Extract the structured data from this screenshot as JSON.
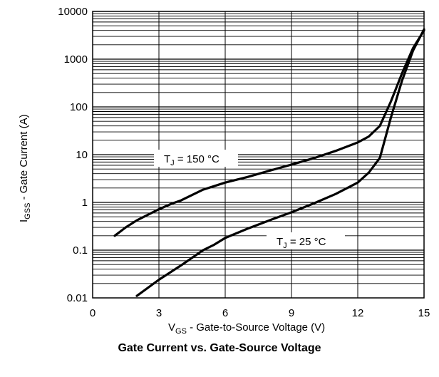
{
  "chart_data": {
    "type": "line",
    "title": "Gate Current vs. Gate-Source Voltage",
    "xlabel": {
      "main": "V",
      "sub": "GS",
      "rest": " - Gate-to-Source Voltage (V)"
    },
    "ylabel": {
      "main": "I",
      "sub": "GSS",
      "rest": " - Gate Current (A)"
    },
    "xlim": [
      0,
      15
    ],
    "ylim": [
      0.01,
      10000
    ],
    "yscale": "log",
    "grid": true,
    "x_ticks": [
      "0",
      "3",
      "6",
      "9",
      "12",
      "15"
    ],
    "y_ticks": [
      "0.01",
      "0.1",
      "1",
      "10",
      "100",
      "1000",
      "10000"
    ],
    "series": [
      {
        "name": {
          "main": "T",
          "sub": "J",
          "rest": " = 150 °C"
        },
        "x": [
          1.0,
          1.5,
          2.0,
          3.0,
          3.6,
          4.0,
          5.0,
          6.0,
          7.0,
          8.0,
          9.0,
          10.0,
          11.0,
          12.0,
          12.5,
          13.0,
          13.5,
          14.0,
          14.5,
          15.0
        ],
        "y": [
          0.2,
          0.3,
          0.42,
          0.72,
          0.95,
          1.1,
          1.85,
          2.6,
          3.4,
          4.6,
          6.2,
          8.4,
          12.0,
          18.0,
          24.0,
          40.0,
          130.0,
          500.0,
          1700.0,
          4000.0
        ]
      },
      {
        "name": {
          "main": "T",
          "sub": "J",
          "rest": " = 25 °C"
        },
        "x": [
          2.0,
          3.0,
          4.0,
          5.0,
          5.5,
          6.0,
          7.0,
          8.0,
          9.0,
          10.0,
          11.0,
          12.0,
          12.5,
          13.0,
          13.5,
          14.0,
          14.5,
          15.0
        ],
        "y": [
          0.011,
          0.024,
          0.048,
          0.1,
          0.13,
          0.18,
          0.28,
          0.42,
          0.62,
          0.95,
          1.5,
          2.6,
          4.2,
          8.5,
          60.0,
          350.0,
          1500.0,
          4200.0
        ]
      }
    ]
  }
}
